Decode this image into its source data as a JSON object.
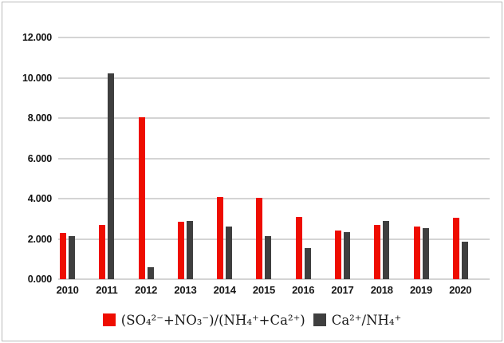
{
  "chart_data": {
    "type": "bar",
    "title": "",
    "xlabel": "",
    "ylabel": "",
    "categories": [
      "2010",
      "2011",
      "2012",
      "2013",
      "2014",
      "2015",
      "2016",
      "2017",
      "2018",
      "2019",
      "2020"
    ],
    "series": [
      {
        "name": "(SO₄²⁻+NO₃⁻)/(NH₄⁺+Ca²⁺)",
        "color": "#ee0d00",
        "values": [
          2.3,
          2.7,
          8.05,
          2.85,
          4.1,
          4.05,
          3.1,
          2.4,
          2.7,
          2.6,
          3.05
        ]
      },
      {
        "name": "Ca²⁺/NH₄⁺",
        "color": "#3f3f3f",
        "values": [
          2.15,
          10.2,
          0.6,
          2.9,
          2.6,
          2.15,
          1.55,
          2.35,
          2.9,
          2.55,
          1.85
        ]
      }
    ],
    "ylim": [
      0,
      12
    ],
    "ytick_step": 2,
    "ytick_labels": [
      "0.000",
      "2.000",
      "4.000",
      "6.000",
      "8.000",
      "10.000",
      "12.000"
    ],
    "grid": true,
    "legend_position": "bottom",
    "colors": {
      "grid": "#d4d4d4",
      "frame_border": "#b9b9b9",
      "axis_text": "#111111"
    }
  }
}
